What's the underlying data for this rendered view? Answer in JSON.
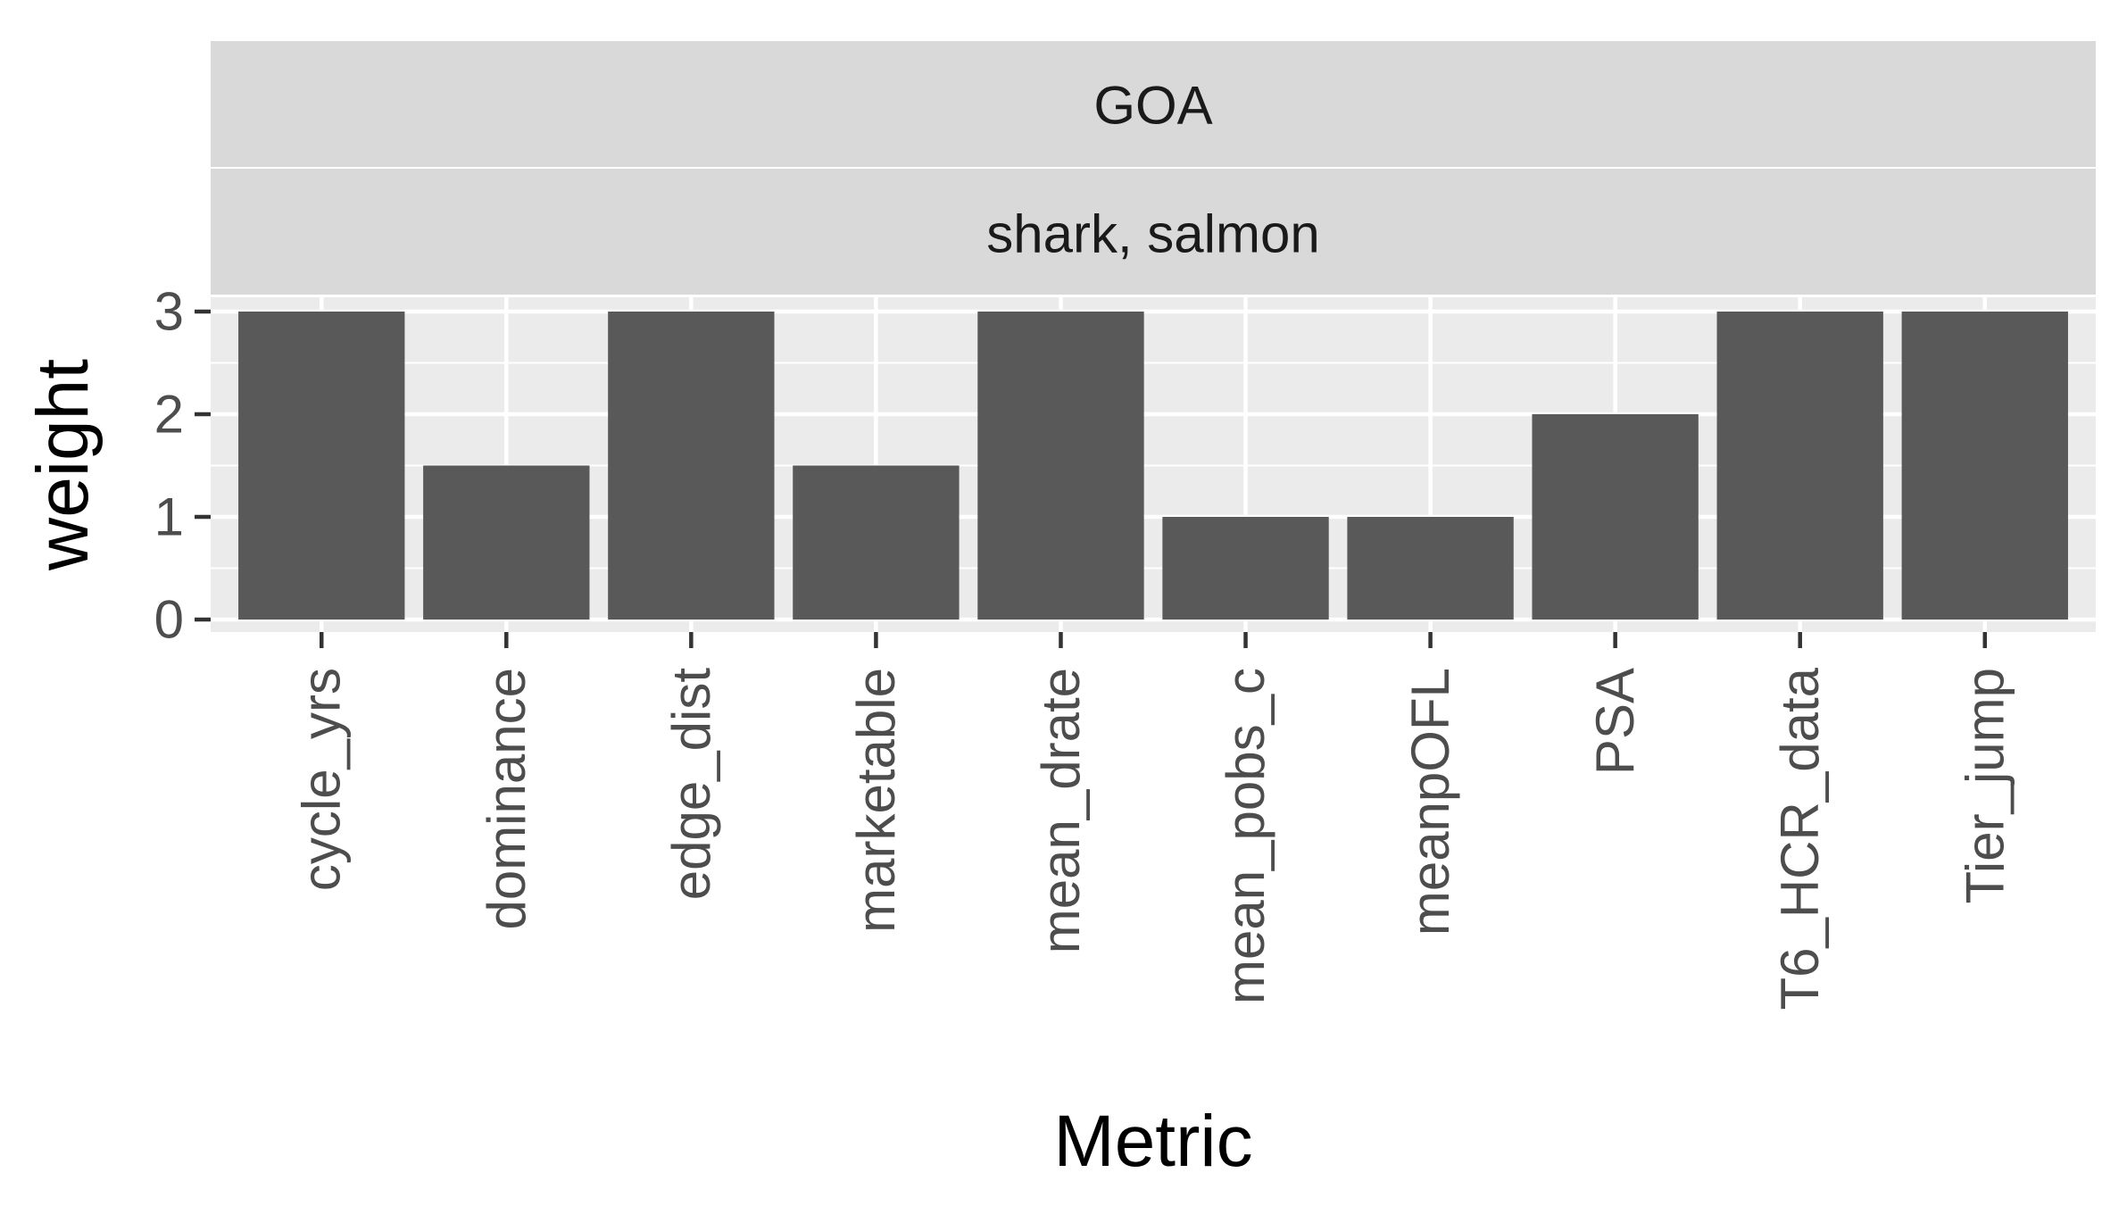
{
  "chart_data": {
    "type": "bar",
    "facet_strips": [
      "GOA",
      "shark, salmon"
    ],
    "categories": [
      "cycle_yrs",
      "dominance",
      "edge_dist",
      "marketable",
      "mean_drate",
      "mean_pobs_c",
      "meanpOFL",
      "PSA",
      "T6_HCR_data",
      "Tier_jump"
    ],
    "values": [
      3,
      1.5,
      3,
      1.5,
      3,
      1,
      1,
      2,
      3,
      3
    ],
    "xlabel": "Metric",
    "ylabel": "weight",
    "ylim": [
      0,
      3
    ],
    "yticks": [
      "0",
      "1",
      "2",
      "3"
    ],
    "grid": true,
    "colors": {
      "bar": "#595959",
      "panel_background": "#ebebeb",
      "strip_background": "#d9d9d9",
      "gridline": "#ffffff",
      "tick": "#333333"
    }
  }
}
